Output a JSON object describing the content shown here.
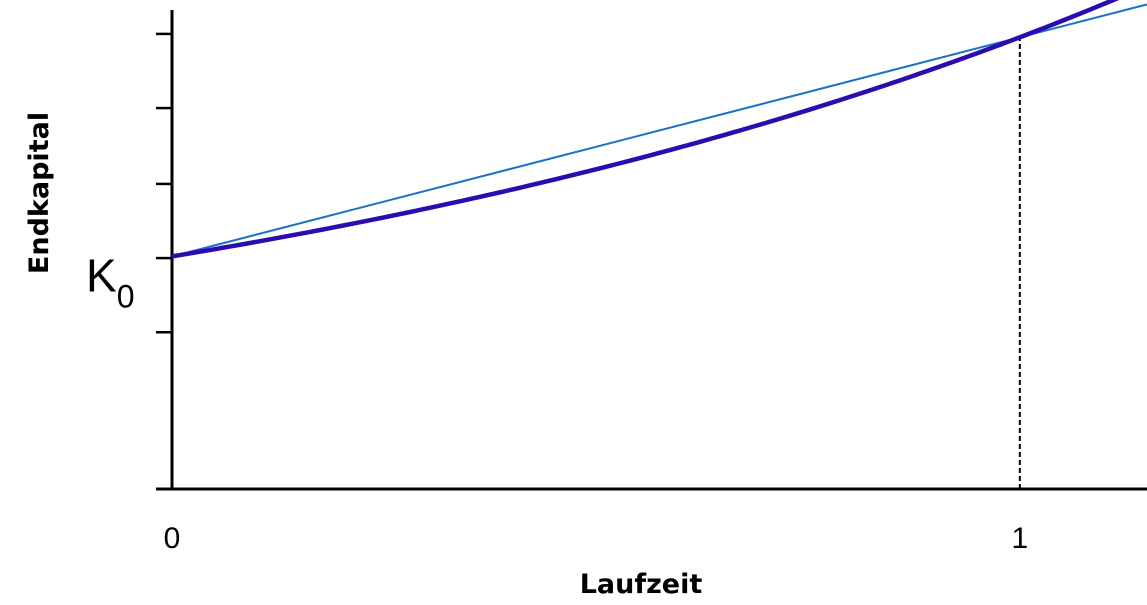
{
  "chart_data": {
    "type": "line",
    "title": "",
    "xlabel": "Laufzeit",
    "ylabel": "Endkapital",
    "x_ticks": [
      {
        "value": 0,
        "label": "0"
      },
      {
        "value": 1,
        "label": "1"
      }
    ],
    "y_marker": {
      "value": 1,
      "label": "K",
      "subscript": "0"
    },
    "xlim": [
      0,
      1.15
    ],
    "ylim": [
      -0.38,
      2.45
    ],
    "y_tick_values": [
      -0.38,
      0.55,
      0.99,
      1.43,
      1.88,
      2.32
    ],
    "grid": false,
    "legend": "none",
    "series": [
      {
        "curve": "exponential",
        "growth_factor": 2.3,
        "x": [
          0,
          1.15
        ],
        "color": "#2a0cb0"
      },
      {
        "curve": "linear",
        "slope": 1.3,
        "x": [
          0,
          1.15
        ],
        "color": "#1b72c4"
      }
    ],
    "reference_line": {
      "x": 1,
      "style": "dashed",
      "color": "#000000"
    }
  }
}
